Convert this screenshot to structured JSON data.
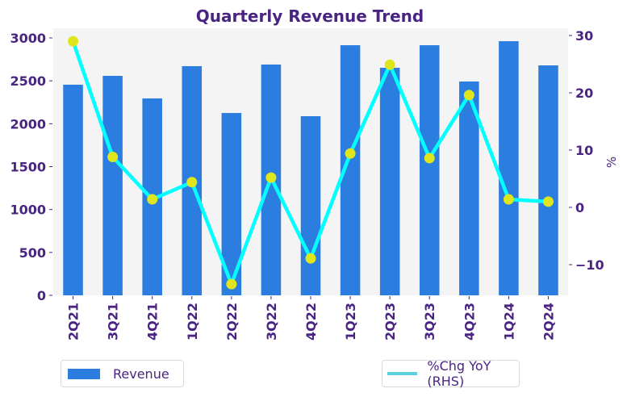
{
  "chart_data": {
    "type": "bar+line",
    "title": "Quarterly Revenue Trend",
    "categories": [
      "2Q21",
      "3Q21",
      "4Q21",
      "1Q22",
      "2Q22",
      "3Q22",
      "4Q22",
      "1Q23",
      "2Q23",
      "3Q23",
      "4Q23",
      "1Q24",
      "2Q24"
    ],
    "series": [
      {
        "name": "Revenue",
        "type": "bar",
        "axis": "left",
        "color": "#2b7de0",
        "values": [
          2455,
          2558,
          2295,
          2671,
          2125,
          2690,
          2088,
          2915,
          2652,
          2915,
          2492,
          2962,
          2680
        ]
      },
      {
        "name": "%Chg YoY (RHS)",
        "type": "line",
        "axis": "right",
        "color": "#00ffff",
        "marker_color": "#e0e61e",
        "legend_color": "#5bcfdc",
        "values": [
          29.0,
          8.8,
          1.4,
          4.4,
          -13.4,
          5.2,
          -8.9,
          9.4,
          24.9,
          8.6,
          19.6,
          1.4,
          1.0
        ]
      }
    ],
    "left_axis": {
      "label": "",
      "ylim": [
        0,
        3000
      ],
      "ticks": [
        0,
        500,
        1000,
        1500,
        2000,
        2500,
        3000
      ],
      "tick_labels": [
        "0",
        "500",
        "1000",
        "1500",
        "2000",
        "2500",
        "3000"
      ]
    },
    "right_axis": {
      "label": "%",
      "ylim": [
        -15,
        30
      ],
      "ticks": [
        -10,
        0,
        10,
        20,
        30
      ],
      "tick_labels": [
        "−10",
        "0",
        "10",
        "20",
        "30"
      ]
    },
    "xlabel": "",
    "grid": false,
    "plot_background": "#f4f4f4",
    "legend": [
      {
        "label": "Revenue",
        "placement": "bottom-left"
      },
      {
        "label": "%Chg YoY (RHS)",
        "placement": "bottom-right"
      }
    ]
  }
}
